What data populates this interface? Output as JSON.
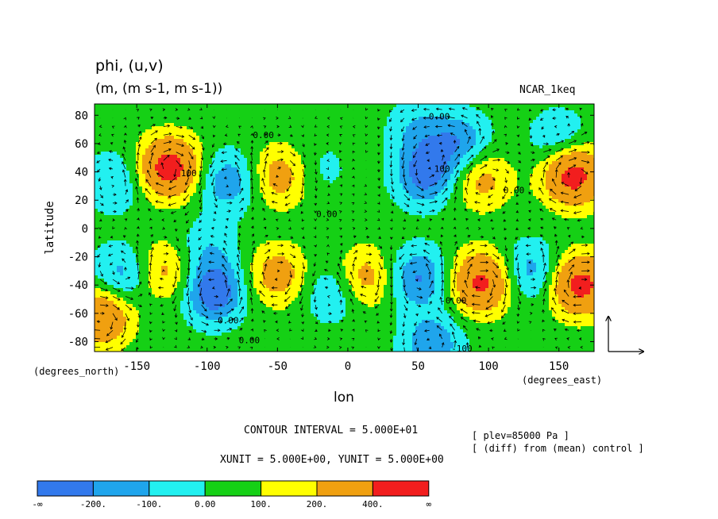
{
  "chart_data": {
    "type": "heatmap",
    "title": "phi, (u,v)",
    "subtitle": "(m, (m s-1, m s-1))",
    "dataset_label": "NCAR_1keq",
    "xlabel": "lon",
    "ylabel": "latitude",
    "xunit_label": "(degrees_east)",
    "yunit_label": "(degrees_north)",
    "xlim": [
      -180,
      175
    ],
    "ylim": [
      -87,
      88
    ],
    "x_ticks": [
      -150,
      -100,
      -50,
      0,
      50,
      100,
      150
    ],
    "y_ticks": [
      80,
      60,
      40,
      20,
      0,
      -20,
      -40,
      -60,
      -80
    ],
    "contour_interval_text": "CONTOUR INTERVAL = 5.000E+01",
    "vector_units_text": "XUNIT = 5.000E+00, YUNIT = 5.000E+00",
    "info_lines": [
      "[ plev=85000 Pa ]",
      "[ (diff) from (mean) control ]"
    ],
    "contour_labels": [
      {
        "text": "0.00",
        "lon": 65,
        "lat": 77
      },
      {
        "text": "0.00",
        "lon": -60,
        "lat": 64
      },
      {
        "text": "100",
        "lon": -113,
        "lat": 37
      },
      {
        "text": "0.00",
        "lon": -15,
        "lat": 8
      },
      {
        "text": "100",
        "lon": 67,
        "lat": 40
      },
      {
        "text": "0.00",
        "lon": 118,
        "lat": 25
      },
      {
        "text": "0.00",
        "lon": -85,
        "lat": -67
      },
      {
        "text": "0.00",
        "lon": -70,
        "lat": -81
      },
      {
        "text": "-0.00",
        "lon": 75,
        "lat": -53
      },
      {
        "text": "-100",
        "lon": 81,
        "lat": -87
      }
    ],
    "features": [
      {
        "lon": -127,
        "lat": 43,
        "value": 450
      },
      {
        "lon": -165,
        "lat": 33,
        "value": -150
      },
      {
        "lon": -85,
        "lat": 33,
        "value": -220
      },
      {
        "lon": -48,
        "lat": 37,
        "value": 230
      },
      {
        "lon": 55,
        "lat": 38,
        "value": -300
      },
      {
        "lon": 95,
        "lat": 35,
        "value": 210
      },
      {
        "lon": 160,
        "lat": 38,
        "value": 450
      },
      {
        "lon": 80,
        "lat": 60,
        "value": -230
      },
      {
        "lon": 150,
        "lat": 62,
        "value": -160
      },
      {
        "lon": -20,
        "lat": 42,
        "value": -80
      },
      {
        "lon": -130,
        "lat": -30,
        "value": 210
      },
      {
        "lon": -95,
        "lat": -45,
        "value": -340
      },
      {
        "lon": -160,
        "lat": -33,
        "value": -200
      },
      {
        "lon": -50,
        "lat": -33,
        "value": 230
      },
      {
        "lon": -10,
        "lat": -45,
        "value": -160
      },
      {
        "lon": 12,
        "lat": -35,
        "value": 230
      },
      {
        "lon": 50,
        "lat": -35,
        "value": -260
      },
      {
        "lon": 95,
        "lat": -38,
        "value": 400
      },
      {
        "lon": 130,
        "lat": -30,
        "value": -200
      },
      {
        "lon": 165,
        "lat": -40,
        "value": 420
      },
      {
        "lon": -175,
        "lat": -62,
        "value": 330
      },
      {
        "lon": 60,
        "lat": -82,
        "value": -230
      },
      {
        "lon": 50,
        "lat": 70,
        "value": -140
      },
      {
        "lon": -100,
        "lat": -15,
        "value": -130
      }
    ],
    "colorbar": {
      "colors": [
        "#3279ec",
        "#1fa5ec",
        "#22f0f0",
        "#15d015",
        "#ffff00",
        "#f0a010",
        "#f21e1e"
      ],
      "labels": [
        "-∞",
        "-200.",
        "-100.",
        "0.00",
        "100.",
        "200.",
        "400.",
        "∞"
      ]
    }
  }
}
